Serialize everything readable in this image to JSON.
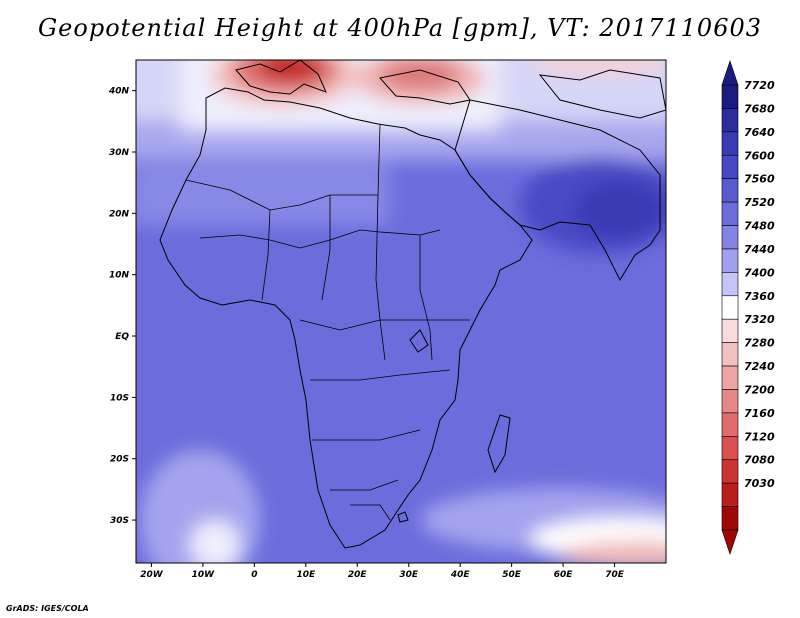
{
  "title": "Geopotential Height at 400hPa [gpm], VT: 2017110603",
  "credit": "GrADS: IGES/COLA",
  "map": {
    "lon_range": [
      -23,
      80
    ],
    "lat_range": [
      -37,
      45
    ],
    "lon_ticks": [
      "20W",
      "10W",
      "0",
      "10E",
      "20E",
      "30E",
      "40E",
      "50E",
      "60E",
      "70E"
    ],
    "lat_ticks": [
      "40N",
      "30N",
      "20N",
      "10N",
      "EQ",
      "10S",
      "20S",
      "30S"
    ]
  },
  "colorbar": {
    "levels": [
      "7720",
      "7680",
      "7640",
      "7600",
      "7560",
      "7520",
      "7480",
      "7440",
      "7400",
      "7360",
      "7320",
      "7280",
      "7240",
      "7200",
      "7160",
      "7120",
      "7080",
      "7030"
    ],
    "colors": [
      "#1a1a80",
      "#2c2ca0",
      "#3a3ab4",
      "#4848c4",
      "#5a5ad0",
      "#6c6cdc",
      "#8484e6",
      "#a0a0ee",
      "#c4c4f6",
      "#ffffff",
      "#f8dcdc",
      "#f2c0c0",
      "#eca4a4",
      "#e68888",
      "#e06c6c",
      "#d85050",
      "#cc3434",
      "#bb1c1c",
      "#a00808"
    ],
    "top_color": "#1a1a80",
    "bottom_color": "#a00808"
  }
}
